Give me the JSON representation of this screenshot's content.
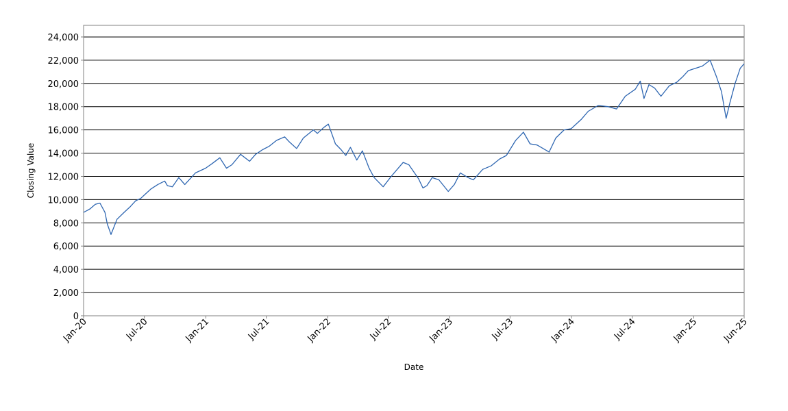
{
  "chart_data": {
    "type": "line",
    "title": "",
    "xlabel": "Date",
    "ylabel": "Closing Value",
    "xlim": [
      "2020-01-01",
      "2025-06-01"
    ],
    "ylim": [
      0,
      25000
    ],
    "y_ticks": [
      0,
      2000,
      4000,
      6000,
      8000,
      10000,
      12000,
      14000,
      16000,
      18000,
      20000,
      22000,
      24000
    ],
    "y_tick_labels": [
      "0",
      "2,000",
      "4,000",
      "6,000",
      "8,000",
      "10,000",
      "12,000",
      "14,000",
      "16,000",
      "18,000",
      "20,000",
      "22,000",
      "24,000"
    ],
    "x_ticks": [
      "2020-01-01",
      "2020-07-01",
      "2021-01-01",
      "2021-07-01",
      "2022-01-01",
      "2022-07-01",
      "2023-01-01",
      "2023-07-01",
      "2024-01-01",
      "2024-07-01",
      "2025-01-01",
      "2025-06-01"
    ],
    "x_tick_labels": [
      "Jan-20",
      "Jul-20",
      "Jan-21",
      "Jul-21",
      "Jan-22",
      "Jul-22",
      "Jan-23",
      "Jul-23",
      "Jan-24",
      "Jul-24",
      "Jan-25",
      "Jun-25"
    ],
    "grid": "horizontal",
    "line_color": "#2e66b1",
    "series": [
      {
        "x": [
          "2020-01-01",
          "2020-01-20",
          "2020-02-05",
          "2020-02-19",
          "2020-03-05",
          "2020-03-12",
          "2020-03-23",
          "2020-04-10",
          "2020-05-01",
          "2020-05-20",
          "2020-06-05",
          "2020-06-20",
          "2020-07-01",
          "2020-07-20",
          "2020-08-10",
          "2020-08-31",
          "2020-09-08",
          "2020-09-23",
          "2020-10-12",
          "2020-10-30",
          "2020-11-15",
          "2020-12-01",
          "2020-12-31",
          "2021-01-20",
          "2021-02-12",
          "2021-03-04",
          "2021-03-20",
          "2021-04-15",
          "2021-05-12",
          "2021-05-30",
          "2021-06-20",
          "2021-07-10",
          "2021-08-01",
          "2021-08-25",
          "2021-09-07",
          "2021-09-30",
          "2021-10-20",
          "2021-11-19",
          "2021-12-01",
          "2021-12-20",
          "2022-01-03",
          "2022-01-24",
          "2022-02-10",
          "2022-02-24",
          "2022-03-10",
          "2022-03-29",
          "2022-04-15",
          "2022-05-05",
          "2022-05-20",
          "2022-06-16",
          "2022-07-10",
          "2022-08-15",
          "2022-09-01",
          "2022-09-30",
          "2022-10-13",
          "2022-10-25",
          "2022-11-10",
          "2022-11-30",
          "2022-12-28",
          "2023-01-15",
          "2023-02-02",
          "2023-02-25",
          "2023-03-13",
          "2023-04-10",
          "2023-05-05",
          "2023-05-31",
          "2023-06-20",
          "2023-07-18",
          "2023-08-10",
          "2023-08-30",
          "2023-09-20",
          "2023-10-26",
          "2023-11-15",
          "2023-12-10",
          "2023-12-31",
          "2024-01-30",
          "2024-02-20",
          "2024-03-21",
          "2024-04-19",
          "2024-05-15",
          "2024-06-10",
          "2024-07-10",
          "2024-07-25",
          "2024-08-05",
          "2024-08-20",
          "2024-09-06",
          "2024-09-25",
          "2024-10-20",
          "2024-11-11",
          "2024-11-30",
          "2024-12-16",
          "2025-01-06",
          "2025-01-27",
          "2025-02-19",
          "2025-03-10",
          "2025-03-25",
          "2025-04-08",
          "2025-04-20",
          "2025-05-05",
          "2025-05-20",
          "2025-06-01"
        ],
        "y": [
          8900,
          9200,
          9600,
          9700,
          8900,
          7900,
          7000,
          8300,
          8900,
          9400,
          9900,
          10100,
          10400,
          10900,
          11300,
          11600,
          11200,
          11100,
          11900,
          11300,
          11800,
          12300,
          12700,
          13100,
          13600,
          12700,
          13000,
          13900,
          13300,
          13900,
          14300,
          14600,
          15100,
          15400,
          15000,
          14400,
          15300,
          16000,
          15700,
          16200,
          16500,
          14800,
          14300,
          13800,
          14500,
          13400,
          14200,
          12700,
          11900,
          11100,
          12000,
          13200,
          13000,
          11800,
          11000,
          11200,
          11900,
          11700,
          10700,
          11300,
          12300,
          11900,
          11700,
          12600,
          12900,
          13500,
          13800,
          15100,
          15800,
          14800,
          14700,
          14100,
          15300,
          16000,
          16100,
          16900,
          17600,
          18100,
          18000,
          17800,
          18900,
          19500,
          20200,
          18700,
          19900,
          19600,
          18900,
          19800,
          20100,
          20600,
          21100,
          21300,
          21500,
          22000,
          20600,
          19300,
          17000,
          18400,
          20000,
          21300,
          21700
        ]
      }
    ]
  }
}
